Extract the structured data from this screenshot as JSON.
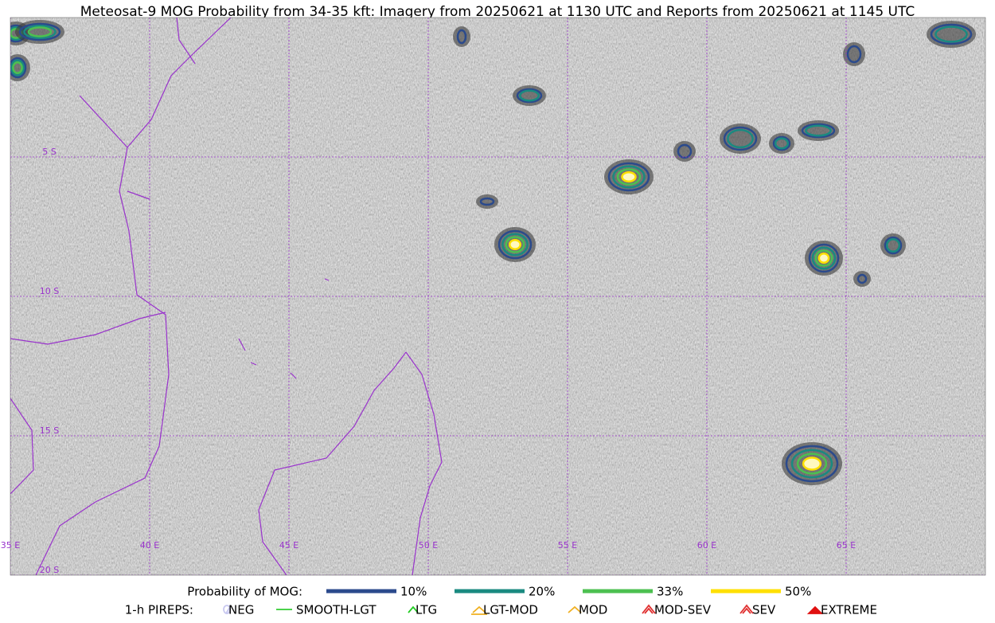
{
  "title": "Meteosat-9 MOG Probability from 34-35 kft: Imagery from 20250621 at 1130 UTC and Reports from 20250621 at 1145 UTC",
  "map": {
    "lon_range": [
      35,
      70
    ],
    "lat_range": [
      0,
      -20
    ],
    "lon_lines": [
      {
        "value": 35,
        "label": "35 E"
      },
      {
        "value": 40,
        "label": "40 E"
      },
      {
        "value": 45,
        "label": "45 E"
      },
      {
        "value": 50,
        "label": "50 E"
      },
      {
        "value": 55,
        "label": "55 E"
      },
      {
        "value": 60,
        "label": "60 E"
      },
      {
        "value": 65,
        "label": "65 E"
      }
    ],
    "lat_lines": [
      {
        "value": -5,
        "label": "5 S"
      },
      {
        "value": -10,
        "label": "10 S"
      },
      {
        "value": -15,
        "label": "15 S"
      },
      {
        "value": -20,
        "label": "20 S"
      }
    ]
  },
  "legend": {
    "probability": {
      "label": "Probability of MOG:",
      "items": [
        {
          "label": "10%",
          "color": "#2b4a8c"
        },
        {
          "label": "20%",
          "color": "#1a8a80"
        },
        {
          "label": "33%",
          "color": "#4cc050"
        },
        {
          "label": "50%",
          "color": "#ffe000"
        }
      ]
    },
    "pireps": {
      "label": "1-h PIREPS:",
      "items": [
        {
          "label": "NEG",
          "color": "#c8c8f0"
        },
        {
          "label": "SMOOTH-LGT",
          "color": "#33cc33"
        },
        {
          "label": "LTG",
          "color": "#22cc22"
        },
        {
          "label": "LGT-MOD",
          "color": "#f0b020"
        },
        {
          "label": "MOD",
          "color": "#f0b020"
        },
        {
          "label": "MOD-SEV",
          "color": "#e03030"
        },
        {
          "label": "SEV",
          "color": "#e03030"
        },
        {
          "label": "EXTREME",
          "color": "#e01010"
        }
      ]
    }
  }
}
